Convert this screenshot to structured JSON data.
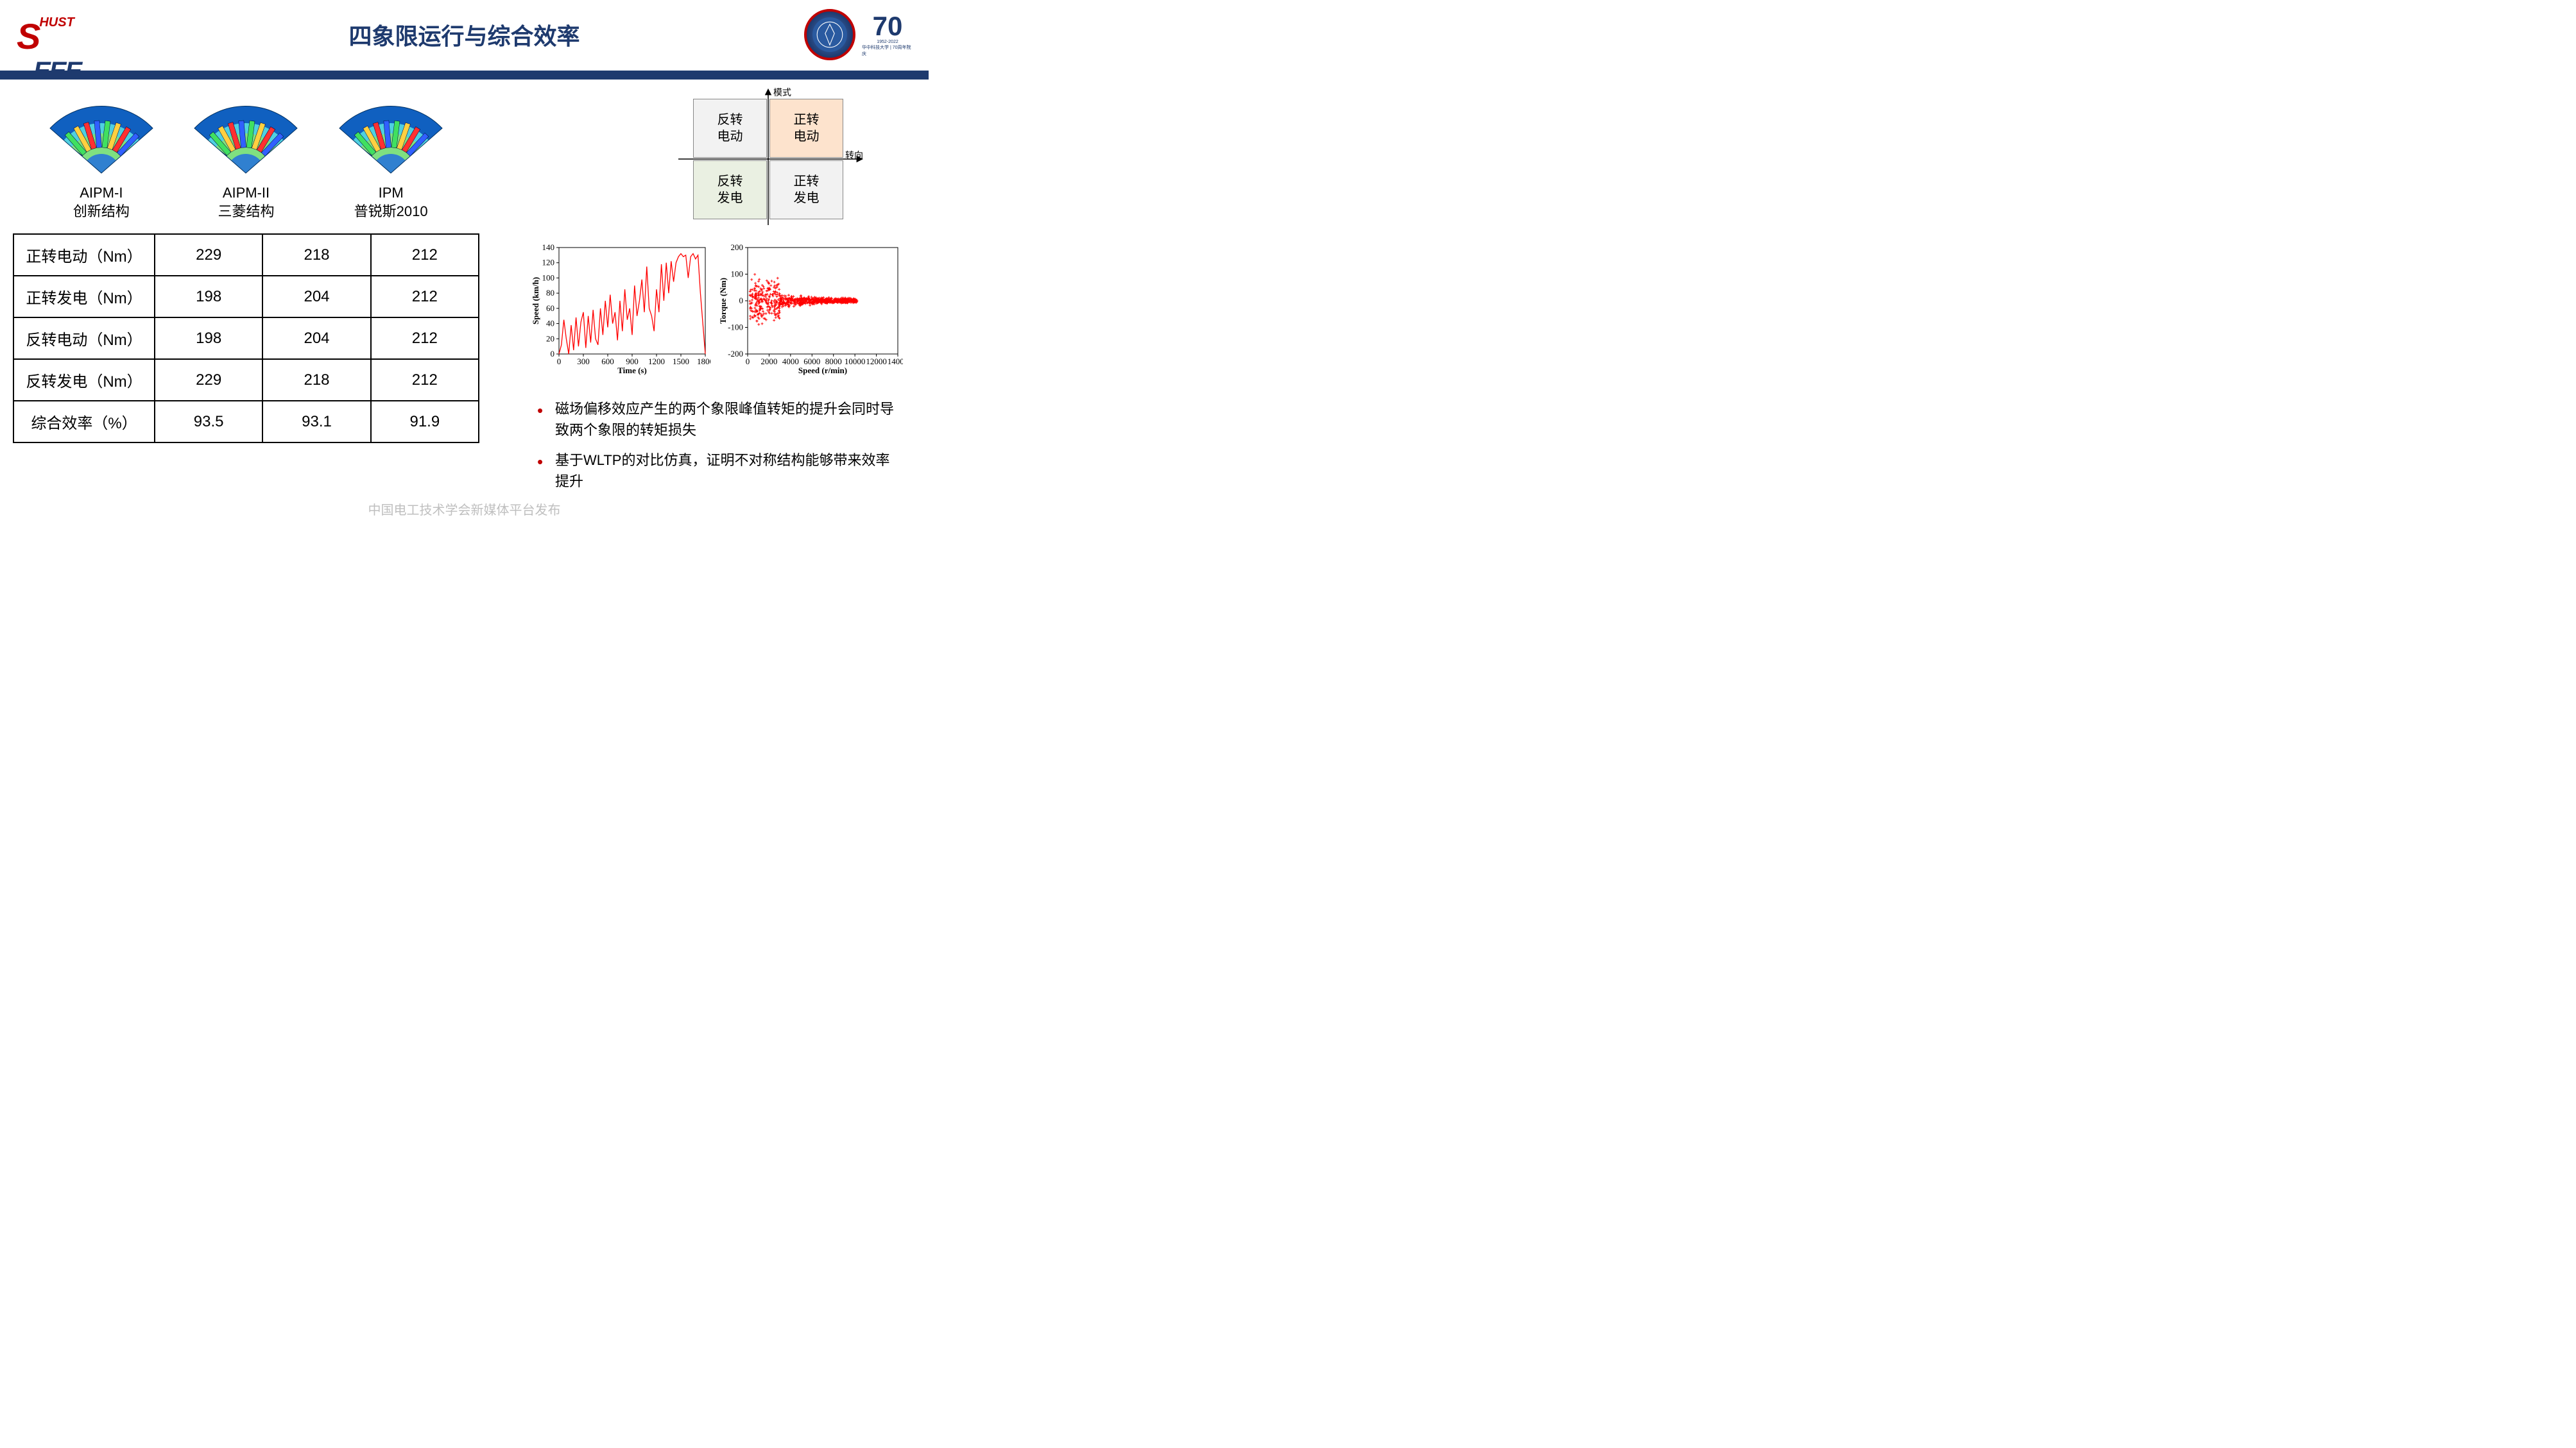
{
  "header": {
    "logo_text_s": "S",
    "logo_text_hust": "HUST",
    "logo_text_eee": "EEE",
    "title": "四象限运行与综合效率",
    "anniversary_num": "70",
    "anniversary_sub1": "1952-2022",
    "anniversary_sub2": "华中科技大学 | 70周年院庆"
  },
  "fans": [
    {
      "line1": "AIPM-I",
      "line2": "创新结构"
    },
    {
      "line1": "AIPM-II",
      "line2": "三菱结构"
    },
    {
      "line1": "IPM",
      "line2": "普锐斯2010"
    }
  ],
  "table": {
    "rows": [
      {
        "label": "正转电动（Nm）",
        "vals": [
          "229",
          "218",
          "212"
        ]
      },
      {
        "label": "正转发电（Nm）",
        "vals": [
          "198",
          "204",
          "212"
        ]
      },
      {
        "label": "反转电动（Nm）",
        "vals": [
          "198",
          "204",
          "212"
        ]
      },
      {
        "label": "反转发电（Nm）",
        "vals": [
          "229",
          "218",
          "212"
        ]
      },
      {
        "label": "综合效率（%）",
        "vals": [
          "93.5",
          "93.1",
          "91.9"
        ]
      }
    ]
  },
  "quadrant": {
    "axis_y": "模式",
    "axis_x": "转向",
    "cells": {
      "q2": {
        "text": "反转\n电动",
        "bg": "#f2f2f2"
      },
      "q1": {
        "text": "正转\n电动",
        "bg": "#fde3cd"
      },
      "q3": {
        "text": "反转\n发电",
        "bg": "#eaf0e2"
      },
      "q4": {
        "text": "正转\n发电",
        "bg": "#f2f2f2"
      }
    }
  },
  "chart_speed": {
    "xlabel": "Time (s)",
    "ylabel": "Speed (km/h)",
    "xlim": [
      0,
      1800
    ],
    "xtick_step": 300,
    "ylim": [
      0,
      140
    ],
    "ytick_step": 20,
    "line_color": "#ff0000",
    "points": [
      [
        0,
        0
      ],
      [
        30,
        12
      ],
      [
        60,
        45
      ],
      [
        90,
        20
      ],
      [
        120,
        0
      ],
      [
        150,
        38
      ],
      [
        180,
        5
      ],
      [
        210,
        48
      ],
      [
        240,
        10
      ],
      [
        270,
        42
      ],
      [
        300,
        55
      ],
      [
        330,
        8
      ],
      [
        360,
        50
      ],
      [
        390,
        15
      ],
      [
        420,
        58
      ],
      [
        450,
        20
      ],
      [
        480,
        12
      ],
      [
        510,
        60
      ],
      [
        540,
        25
      ],
      [
        570,
        70
      ],
      [
        600,
        35
      ],
      [
        630,
        78
      ],
      [
        660,
        40
      ],
      [
        690,
        55
      ],
      [
        720,
        18
      ],
      [
        750,
        70
      ],
      [
        780,
        30
      ],
      [
        810,
        85
      ],
      [
        840,
        45
      ],
      [
        870,
        60
      ],
      [
        900,
        25
      ],
      [
        930,
        90
      ],
      [
        960,
        50
      ],
      [
        990,
        70
      ],
      [
        1020,
        98
      ],
      [
        1050,
        55
      ],
      [
        1080,
        115
      ],
      [
        1110,
        60
      ],
      [
        1140,
        50
      ],
      [
        1170,
        30
      ],
      [
        1200,
        85
      ],
      [
        1230,
        55
      ],
      [
        1260,
        118
      ],
      [
        1290,
        70
      ],
      [
        1320,
        120
      ],
      [
        1350,
        80
      ],
      [
        1380,
        122
      ],
      [
        1410,
        95
      ],
      [
        1440,
        120
      ],
      [
        1470,
        128
      ],
      [
        1500,
        132
      ],
      [
        1530,
        128
      ],
      [
        1560,
        130
      ],
      [
        1590,
        100
      ],
      [
        1620,
        128
      ],
      [
        1650,
        132
      ],
      [
        1680,
        125
      ],
      [
        1710,
        130
      ],
      [
        1740,
        80
      ],
      [
        1770,
        40
      ],
      [
        1800,
        0
      ]
    ]
  },
  "chart_torque": {
    "xlabel": "Speed (r/min)",
    "ylabel": "Torque (Nm)",
    "xlim": [
      0,
      14000
    ],
    "xtick_step": 2000,
    "ylim": [
      -200,
      200
    ],
    "ytick_step": 100,
    "marker_color": "#ff0000"
  },
  "bullets": [
    "磁场偏移效应产生的两个象限峰值转矩的提升会同时导致两个象限的转矩损失",
    "基于WLTP的对比仿真，证明不对称结构能够带来效率提升"
  ],
  "footer": "中国电工技术学会新媒体平台发布"
}
